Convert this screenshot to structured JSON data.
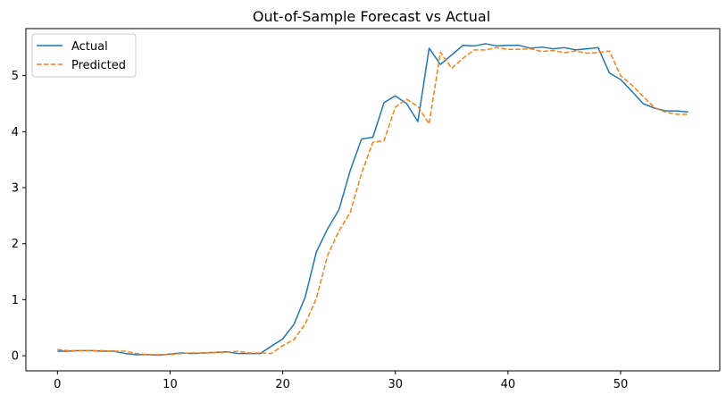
{
  "chart_data": {
    "type": "line",
    "title": "Out-of-Sample Forecast vs Actual",
    "xlabel": "",
    "ylabel": "",
    "xlim": [
      -2.8,
      58.8
    ],
    "ylim": [
      -0.27,
      5.84
    ],
    "xticks": [
      0,
      10,
      20,
      30,
      40,
      50
    ],
    "yticks": [
      0,
      1,
      2,
      3,
      4,
      5
    ],
    "grid": false,
    "legend_position": "upper left",
    "x": [
      0,
      1,
      2,
      3,
      4,
      5,
      6,
      7,
      8,
      9,
      10,
      11,
      12,
      13,
      14,
      15,
      16,
      17,
      18,
      19,
      20,
      21,
      22,
      23,
      24,
      25,
      26,
      27,
      28,
      29,
      30,
      31,
      32,
      33,
      34,
      35,
      36,
      37,
      38,
      39,
      40,
      41,
      42,
      43,
      44,
      45,
      46,
      47,
      48,
      49,
      50,
      51,
      52,
      53,
      54,
      55,
      56
    ],
    "series": [
      {
        "name": "Actual",
        "color": "#1f77b4",
        "style": "solid",
        "values": [
          0.08,
          0.08,
          0.09,
          0.09,
          0.08,
          0.08,
          0.04,
          0.02,
          0.02,
          0.01,
          0.03,
          0.05,
          0.04,
          0.05,
          0.06,
          0.07,
          0.04,
          0.04,
          0.04,
          0.17,
          0.3,
          0.56,
          1.05,
          1.86,
          2.27,
          2.61,
          3.31,
          3.87,
          3.9,
          4.52,
          4.64,
          4.5,
          4.18,
          5.49,
          5.2,
          5.37,
          5.54,
          5.53,
          5.57,
          5.53,
          5.54,
          5.54,
          5.49,
          5.51,
          5.48,
          5.5,
          5.46,
          5.48,
          5.5,
          5.05,
          4.93,
          4.72,
          4.5,
          4.42,
          4.37,
          4.37,
          4.35
        ]
      },
      {
        "name": "Predicted",
        "color": "#ff7f0e",
        "style": "dashed",
        "values": [
          0.11,
          0.09,
          0.09,
          0.09,
          0.09,
          0.08,
          0.08,
          0.04,
          0.02,
          0.02,
          0.02,
          0.04,
          0.05,
          0.05,
          0.06,
          0.06,
          0.08,
          0.05,
          0.05,
          0.04,
          0.18,
          0.29,
          0.57,
          1.03,
          1.8,
          2.23,
          2.56,
          3.26,
          3.81,
          3.84,
          4.44,
          4.58,
          4.45,
          4.14,
          5.42,
          5.13,
          5.31,
          5.46,
          5.46,
          5.5,
          5.47,
          5.47,
          5.48,
          5.43,
          5.45,
          5.41,
          5.44,
          5.4,
          5.41,
          5.44,
          5.0,
          4.83,
          4.63,
          4.43,
          4.35,
          4.31,
          4.31
        ]
      }
    ]
  }
}
